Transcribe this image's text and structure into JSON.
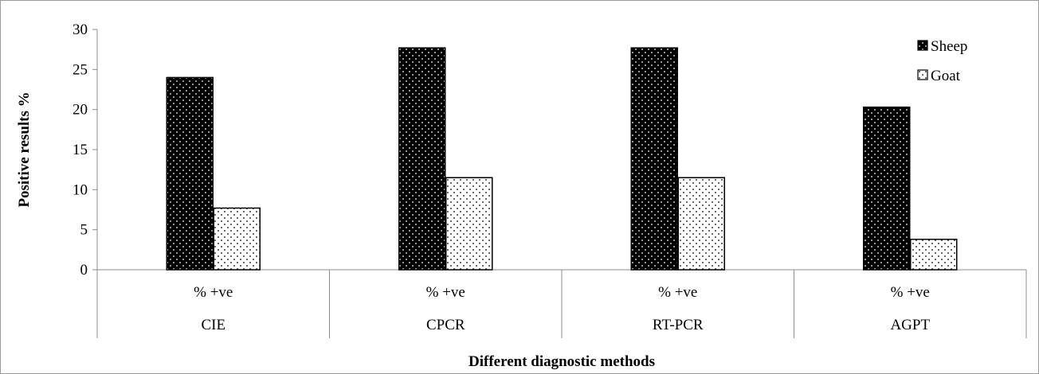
{
  "chart_data": {
    "type": "bar",
    "title": "",
    "xlabel": "Different diagnostic methods",
    "ylabel": "Positive results %",
    "ylim": [
      0,
      30
    ],
    "yticks": [
      0,
      5,
      10,
      15,
      20,
      25,
      30
    ],
    "grid": false,
    "legend_position": "top-right",
    "group_sublabel": "% +ve",
    "categories": [
      "CIE",
      "CPCR",
      "RT-PCR",
      "AGPT"
    ],
    "series": [
      {
        "name": "Sheep",
        "values": [
          24.0,
          27.7,
          27.7,
          20.3
        ],
        "color": "#000000",
        "pattern": "white-dots-on-black"
      },
      {
        "name": "Goat",
        "values": [
          7.7,
          11.5,
          11.5,
          3.8
        ],
        "color": "#ffffff",
        "pattern": "black-dots-on-white"
      }
    ]
  }
}
